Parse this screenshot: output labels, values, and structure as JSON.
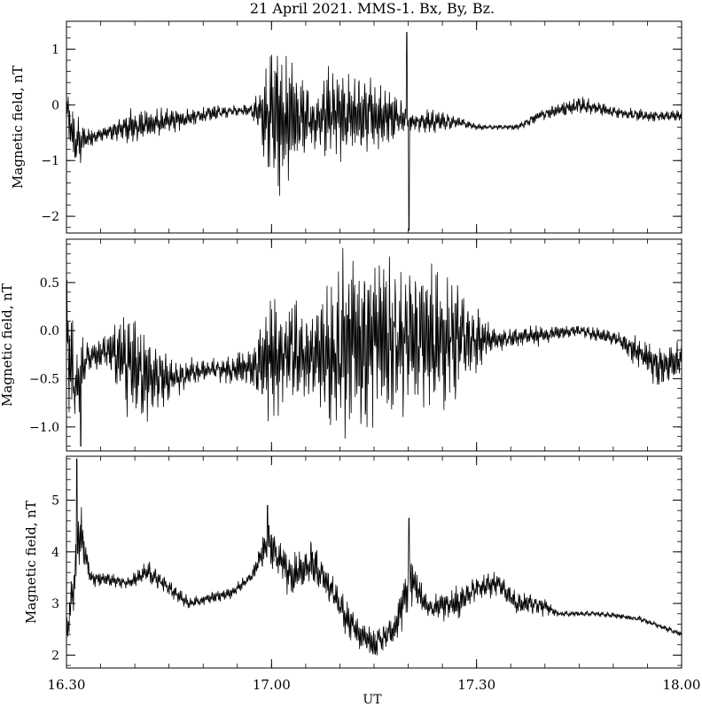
{
  "chart_data": {
    "type": "line",
    "title": "21 April 2021. MMS-1. Bx, By, Bz.",
    "xlabel": "UT",
    "x_range_hours": [
      16.5,
      18.0
    ],
    "x_ticks": [
      {
        "value": 16.5,
        "label": "16.30"
      },
      {
        "value": 17.0,
        "label": "17.00"
      },
      {
        "value": 17.5,
        "label": "17.30"
      },
      {
        "value": 18.0,
        "label": "18.00"
      }
    ],
    "grid": false,
    "panels": [
      {
        "component": "Bx",
        "ylabel": "Magnetic field, nT",
        "ylim": [
          -2.3,
          1.5
        ],
        "y_ticks": [
          {
            "v": -2,
            "l": "−2"
          },
          {
            "v": -1,
            "l": "−1"
          },
          {
            "v": 0,
            "l": "0"
          },
          {
            "v": 1,
            "l": "1"
          }
        ],
        "envelope": [
          {
            "x": 16.5,
            "base": -0.1,
            "amp": 0.35
          },
          {
            "x": 16.52,
            "base": -0.7,
            "amp": 0.5
          },
          {
            "x": 16.55,
            "base": -0.6,
            "amp": 0.2
          },
          {
            "x": 16.6,
            "base": -0.5,
            "amp": 0.1
          },
          {
            "x": 16.65,
            "base": -0.4,
            "amp": 0.3
          },
          {
            "x": 16.75,
            "base": -0.3,
            "amp": 0.2
          },
          {
            "x": 16.9,
            "base": -0.1,
            "amp": 0.1
          },
          {
            "x": 16.95,
            "base": -0.1,
            "amp": 0.1
          },
          {
            "x": 16.98,
            "base": -0.2,
            "amp": 0.6
          },
          {
            "x": 17.01,
            "base": -0.2,
            "amp": 1.5
          },
          {
            "x": 17.05,
            "base": -0.2,
            "amp": 1.0
          },
          {
            "x": 17.1,
            "base": -0.3,
            "amp": 0.5
          },
          {
            "x": 17.15,
            "base": -0.2,
            "amp": 0.8
          },
          {
            "x": 17.2,
            "base": -0.2,
            "amp": 0.7
          },
          {
            "x": 17.25,
            "base": -0.2,
            "amp": 0.6
          },
          {
            "x": 17.3,
            "base": -0.2,
            "amp": 0.4
          },
          {
            "x": 17.35,
            "base": -0.3,
            "amp": 0.15
          },
          {
            "x": 17.4,
            "base": -0.3,
            "amp": 0.2
          },
          {
            "x": 17.45,
            "base": -0.3,
            "amp": 0.1
          },
          {
            "x": 17.5,
            "base": -0.4,
            "amp": 0.05
          },
          {
            "x": 17.6,
            "base": -0.4,
            "amp": 0.05
          },
          {
            "x": 17.65,
            "base": -0.2,
            "amp": 0.1
          },
          {
            "x": 17.75,
            "base": 0.0,
            "amp": 0.15
          },
          {
            "x": 17.82,
            "base": -0.1,
            "amp": 0.1
          },
          {
            "x": 17.9,
            "base": -0.2,
            "amp": 0.1
          },
          {
            "x": 18.0,
            "base": -0.2,
            "amp": 0.1
          }
        ],
        "spikes": [
          {
            "x": 17.335,
            "y": -2.25
          },
          {
            "x": 17.33,
            "y": 1.3
          }
        ]
      },
      {
        "component": "By",
        "ylabel": "Magnetic field, nT",
        "ylim": [
          -1.25,
          0.95
        ],
        "y_ticks": [
          {
            "v": -1.0,
            "l": "−1.0"
          },
          {
            "v": -0.5,
            "l": "−0.5"
          },
          {
            "v": 0.0,
            "l": "0.0"
          },
          {
            "v": 0.5,
            "l": "0.5"
          }
        ],
        "envelope": [
          {
            "x": 16.5,
            "base": -0.1,
            "amp": 0.6
          },
          {
            "x": 16.52,
            "base": -0.6,
            "amp": 0.5
          },
          {
            "x": 16.55,
            "base": -0.3,
            "amp": 0.15
          },
          {
            "x": 16.6,
            "base": -0.2,
            "amp": 0.2
          },
          {
            "x": 16.65,
            "base": -0.3,
            "amp": 0.5
          },
          {
            "x": 16.7,
            "base": -0.5,
            "amp": 0.4
          },
          {
            "x": 16.75,
            "base": -0.5,
            "amp": 0.2
          },
          {
            "x": 16.85,
            "base": -0.4,
            "amp": 0.1
          },
          {
            "x": 16.95,
            "base": -0.4,
            "amp": 0.2
          },
          {
            "x": 17.0,
            "base": -0.3,
            "amp": 0.6
          },
          {
            "x": 17.05,
            "base": -0.2,
            "amp": 0.5
          },
          {
            "x": 17.1,
            "base": -0.3,
            "amp": 0.4
          },
          {
            "x": 17.15,
            "base": -0.2,
            "amp": 0.8
          },
          {
            "x": 17.25,
            "base": -0.1,
            "amp": 0.9
          },
          {
            "x": 17.35,
            "base": -0.1,
            "amp": 0.7
          },
          {
            "x": 17.45,
            "base": -0.1,
            "amp": 0.6
          },
          {
            "x": 17.5,
            "base": -0.1,
            "amp": 0.3
          },
          {
            "x": 17.55,
            "base": -0.1,
            "amp": 0.1
          },
          {
            "x": 17.65,
            "base": -0.05,
            "amp": 0.1
          },
          {
            "x": 17.75,
            "base": 0.0,
            "amp": 0.05
          },
          {
            "x": 17.85,
            "base": -0.1,
            "amp": 0.1
          },
          {
            "x": 17.95,
            "base": -0.4,
            "amp": 0.2
          },
          {
            "x": 18.0,
            "base": -0.3,
            "amp": 0.2
          }
        ],
        "spikes": [
          {
            "x": 16.535,
            "y": -1.2
          }
        ]
      },
      {
        "component": "Bz",
        "ylabel": "Magnetic field, nT",
        "ylim": [
          1.75,
          5.85
        ],
        "y_ticks": [
          {
            "v": 2,
            "l": "2"
          },
          {
            "v": 3,
            "l": "3"
          },
          {
            "v": 4,
            "l": "4"
          },
          {
            "v": 5,
            "l": "5"
          }
        ],
        "envelope": [
          {
            "x": 16.5,
            "base": 2.4,
            "amp": 0.3
          },
          {
            "x": 16.52,
            "base": 3.5,
            "amp": 0.5
          },
          {
            "x": 16.53,
            "base": 4.5,
            "amp": 0.6
          },
          {
            "x": 16.545,
            "base": 4.0,
            "amp": 0.3
          },
          {
            "x": 16.56,
            "base": 3.5,
            "amp": 0.15
          },
          {
            "x": 16.65,
            "base": 3.4,
            "amp": 0.1
          },
          {
            "x": 16.7,
            "base": 3.6,
            "amp": 0.2
          },
          {
            "x": 16.8,
            "base": 3.0,
            "amp": 0.1
          },
          {
            "x": 16.9,
            "base": 3.2,
            "amp": 0.1
          },
          {
            "x": 16.95,
            "base": 3.5,
            "amp": 0.1
          },
          {
            "x": 16.99,
            "base": 4.2,
            "amp": 0.4
          },
          {
            "x": 17.05,
            "base": 3.5,
            "amp": 0.4
          },
          {
            "x": 17.1,
            "base": 3.8,
            "amp": 0.4
          },
          {
            "x": 17.15,
            "base": 3.2,
            "amp": 0.3
          },
          {
            "x": 17.2,
            "base": 2.5,
            "amp": 0.3
          },
          {
            "x": 17.25,
            "base": 2.2,
            "amp": 0.3
          },
          {
            "x": 17.3,
            "base": 2.5,
            "amp": 0.3
          },
          {
            "x": 17.34,
            "base": 3.5,
            "amp": 0.5
          },
          {
            "x": 17.38,
            "base": 2.9,
            "amp": 0.2
          },
          {
            "x": 17.45,
            "base": 3.0,
            "amp": 0.3
          },
          {
            "x": 17.5,
            "base": 3.3,
            "amp": 0.25
          },
          {
            "x": 17.55,
            "base": 3.4,
            "amp": 0.2
          },
          {
            "x": 17.6,
            "base": 3.0,
            "amp": 0.2
          },
          {
            "x": 17.65,
            "base": 3.0,
            "amp": 0.2
          },
          {
            "x": 17.7,
            "base": 2.8,
            "amp": 0.05
          },
          {
            "x": 17.8,
            "base": 2.8,
            "amp": 0.05
          },
          {
            "x": 17.9,
            "base": 2.7,
            "amp": 0.05
          },
          {
            "x": 18.0,
            "base": 2.4,
            "amp": 0.05
          }
        ],
        "spikes": [
          {
            "x": 16.525,
            "y": 5.8
          },
          {
            "x": 17.335,
            "y": 4.65
          },
          {
            "x": 16.99,
            "y": 4.9
          }
        ]
      }
    ]
  }
}
